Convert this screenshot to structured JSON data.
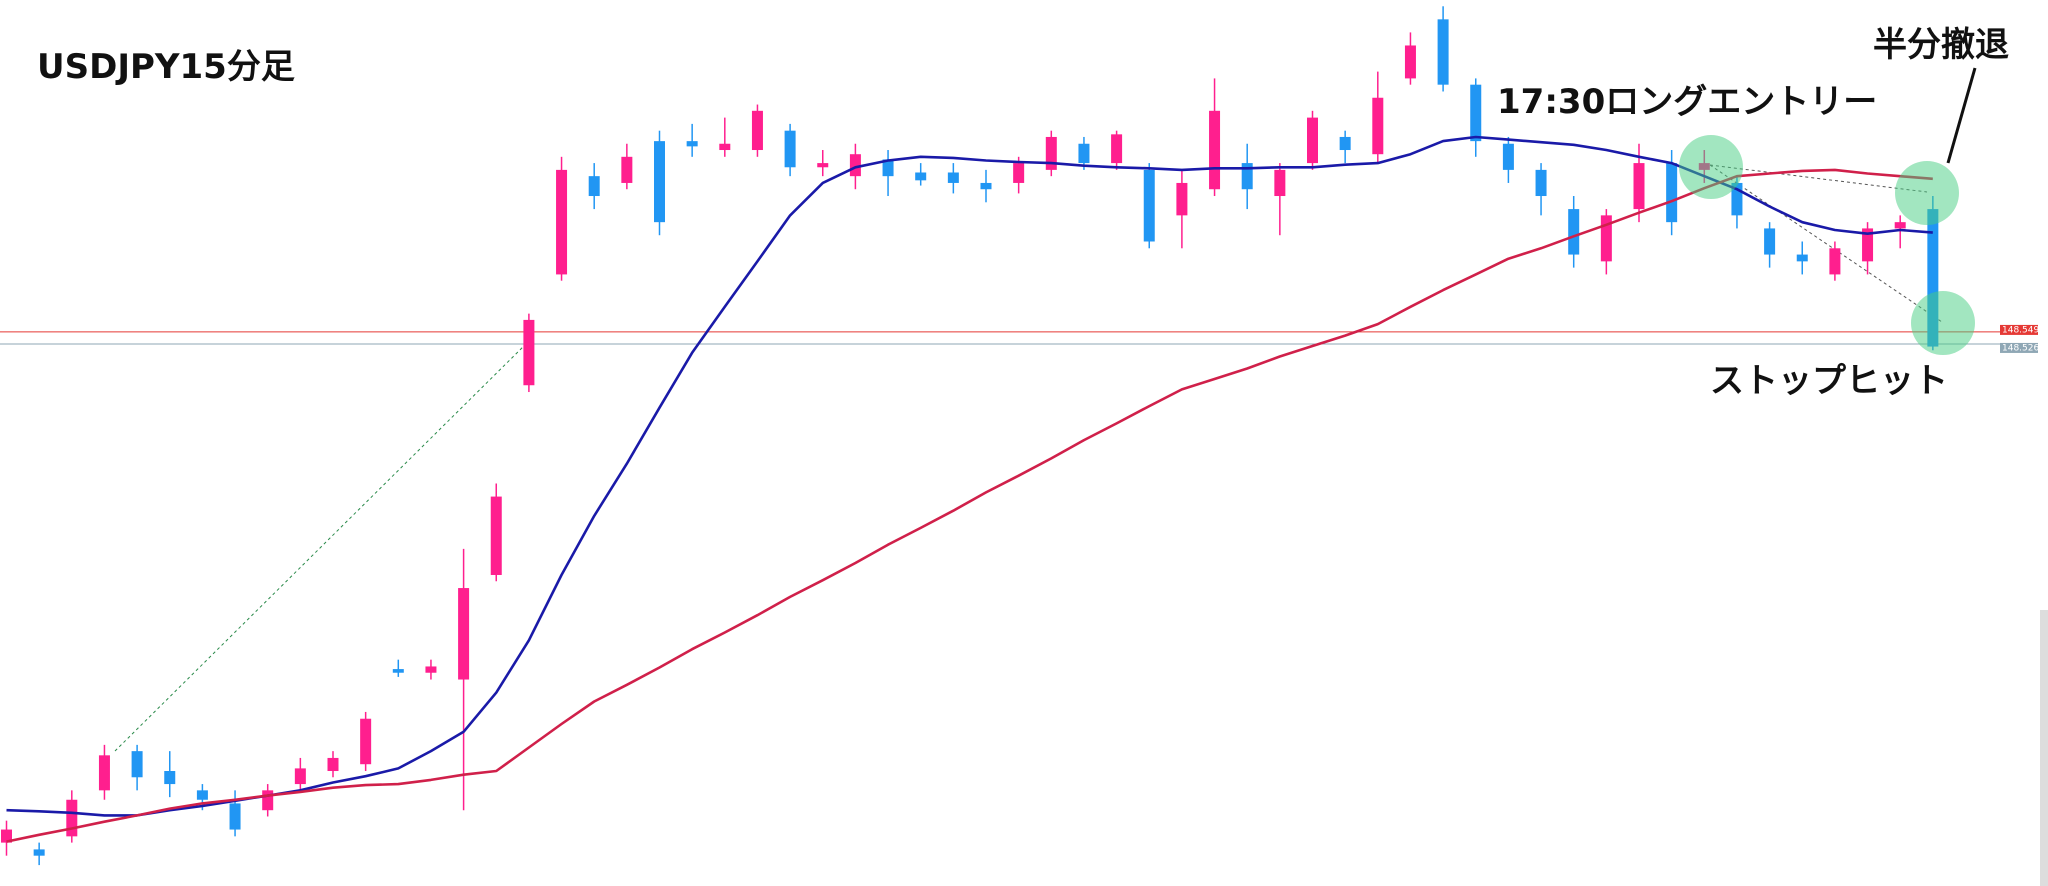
{
  "chart_data": {
    "type": "candlestick",
    "title": "USDJPY15分足",
    "annotations": [
      "17:30ロングエントリー",
      "半分撤退",
      "ストップヒット"
    ],
    "ylim": [
      147.489,
      149.184
    ],
    "up_color": "#ff1f8e",
    "down_color": "#2196f3",
    "open": [
      147.572,
      147.559,
      147.584,
      147.672,
      147.747,
      147.709,
      147.672,
      147.647,
      147.634,
      147.684,
      147.709,
      147.722,
      147.904,
      147.897,
      147.884,
      148.084,
      148.447,
      148.659,
      148.847,
      148.834,
      148.914,
      148.914,
      148.897,
      148.897,
      148.934,
      148.864,
      148.847,
      148.879,
      148.854,
      148.854,
      148.834,
      148.834,
      148.859,
      148.909,
      148.872,
      148.859,
      148.772,
      148.822,
      148.872,
      148.809,
      148.872,
      148.922,
      148.889,
      149.034,
      149.147,
      149.022,
      148.909,
      148.859,
      148.784,
      148.684,
      148.784,
      148.872,
      148.859,
      148.834,
      148.747,
      148.697,
      148.659,
      148.684,
      148.747,
      148.784
    ],
    "high": [
      147.614,
      147.572,
      147.672,
      147.759,
      147.759,
      147.747,
      147.684,
      147.672,
      147.684,
      147.734,
      147.747,
      147.822,
      147.922,
      147.922,
      148.134,
      148.259,
      148.584,
      148.884,
      148.872,
      148.909,
      148.934,
      148.947,
      148.959,
      148.984,
      148.947,
      148.897,
      148.909,
      148.897,
      148.872,
      148.872,
      148.859,
      148.884,
      148.934,
      148.922,
      148.934,
      148.872,
      148.859,
      149.034,
      148.909,
      148.872,
      148.972,
      148.934,
      149.047,
      149.122,
      149.172,
      149.034,
      148.922,
      148.872,
      148.809,
      148.784,
      148.909,
      148.897,
      148.897,
      148.847,
      148.759,
      148.722,
      148.722,
      148.759,
      148.772,
      148.809
    ],
    "low": [
      147.547,
      147.529,
      147.572,
      147.654,
      147.672,
      147.659,
      147.634,
      147.584,
      147.622,
      147.672,
      147.697,
      147.709,
      147.889,
      147.884,
      147.634,
      148.072,
      148.434,
      148.647,
      148.784,
      148.822,
      148.734,
      148.884,
      148.884,
      148.884,
      148.847,
      148.847,
      148.822,
      148.809,
      148.829,
      148.814,
      148.797,
      148.814,
      148.847,
      148.859,
      148.859,
      148.709,
      148.709,
      148.809,
      148.784,
      148.734,
      148.859,
      148.872,
      148.872,
      149.022,
      149.009,
      148.884,
      148.834,
      148.772,
      148.672,
      148.659,
      148.759,
      148.734,
      148.834,
      148.747,
      148.672,
      148.659,
      148.647,
      148.659,
      148.709,
      148.514
    ],
    "close": [
      147.597,
      147.547,
      147.654,
      147.739,
      147.697,
      147.684,
      147.654,
      147.597,
      147.672,
      147.714,
      147.734,
      147.809,
      147.897,
      147.909,
      148.059,
      148.234,
      148.572,
      148.859,
      148.809,
      148.884,
      148.759,
      148.904,
      148.909,
      148.972,
      148.864,
      148.872,
      148.889,
      148.847,
      148.839,
      148.834,
      148.822,
      148.872,
      148.922,
      148.872,
      148.927,
      148.722,
      148.834,
      148.972,
      148.822,
      148.859,
      148.959,
      148.897,
      148.997,
      149.097,
      149.022,
      148.914,
      148.859,
      148.809,
      148.697,
      148.772,
      148.872,
      148.759,
      148.872,
      148.772,
      148.697,
      148.684,
      148.709,
      148.747,
      148.759,
      148.521
    ],
    "lines": [
      {
        "color": "#1a1aa8",
        "values": [
          147.634,
          147.632,
          147.629,
          147.624,
          147.624,
          147.634,
          147.642,
          147.652,
          147.662,
          147.672,
          147.687,
          147.699,
          147.714,
          147.747,
          147.784,
          147.859,
          147.959,
          148.084,
          148.197,
          148.297,
          148.404,
          148.509,
          148.597,
          148.684,
          148.772,
          148.834,
          148.864,
          148.877,
          148.884,
          148.882,
          148.877,
          148.874,
          148.872,
          148.867,
          148.864,
          148.862,
          148.859,
          148.862,
          148.862,
          148.864,
          148.864,
          148.869,
          148.872,
          148.889,
          148.914,
          148.922,
          148.917,
          148.912,
          148.907,
          148.897,
          148.884,
          148.872,
          148.847,
          148.822,
          148.789,
          148.759,
          148.744,
          148.737,
          148.744,
          148.739
        ]
      },
      {
        "color": "#d0204a",
        "values": [
          147.574,
          147.587,
          147.599,
          147.612,
          147.624,
          147.637,
          147.647,
          147.654,
          147.662,
          147.669,
          147.677,
          147.682,
          147.684,
          147.692,
          147.702,
          147.709,
          147.754,
          147.799,
          147.842,
          147.874,
          147.907,
          147.942,
          147.974,
          148.007,
          148.042,
          148.074,
          148.107,
          148.142,
          148.174,
          148.207,
          148.242,
          148.274,
          148.307,
          148.342,
          148.374,
          148.407,
          148.439,
          148.459,
          148.479,
          148.502,
          148.522,
          148.542,
          148.564,
          148.597,
          148.629,
          148.659,
          148.689,
          148.709,
          148.732,
          148.754,
          148.777,
          148.799,
          148.824,
          148.847,
          148.852,
          148.857,
          148.859,
          148.852,
          148.847,
          148.842
        ]
      }
    ],
    "levels": [
      148.549,
      148.526
    ],
    "level_colors": [
      "#e53935",
      "#8fa7b5"
    ]
  }
}
